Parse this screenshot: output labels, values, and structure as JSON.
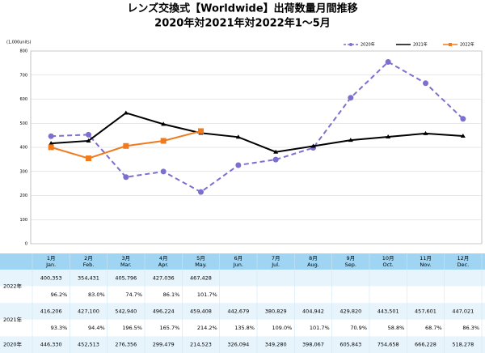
{
  "chart_data": {
    "type": "line",
    "title": "レンズ交換式【Worldwide】出荷数量月間推移",
    "subtitle": "2020年対2021年対2022年1～5月",
    "y_label": "(1,000units)",
    "categories": [
      "1月",
      "2月",
      "3月",
      "4月",
      "5月",
      "6月",
      "7月",
      "8月",
      "9月",
      "10月",
      "11月",
      "12月"
    ],
    "categories_en": [
      "Jan.",
      "Feb.",
      "Mar.",
      "Apr.",
      "May.",
      "Jun.",
      "Jul.",
      "Aug.",
      "Sep.",
      "Oct.",
      "Nov.",
      "Dec."
    ],
    "ylim": [
      0,
      800
    ],
    "yticks": [
      0,
      100,
      200,
      300,
      400,
      500,
      600,
      700,
      800
    ],
    "grid": true,
    "legend": "top-right",
    "series": [
      {
        "name": "2020年",
        "color": "#7b6fd0",
        "dashed": true,
        "marker": "circle",
        "values": [
          446.33,
          452.513,
          276.356,
          299.479,
          214.523,
          326.094,
          349.28,
          398.067,
          605.843,
          754.658,
          666.228,
          518.278
        ],
        "value_labels": [
          "446,330",
          "452,513",
          "276,356",
          "299,479",
          "214,523",
          "326,094",
          "349,280",
          "398,067",
          "605,843",
          "754,658",
          "666,228",
          "518,278"
        ]
      },
      {
        "name": "2021年",
        "color": "#000000",
        "dashed": false,
        "marker": "none",
        "values": [
          416.206,
          427.1,
          542.94,
          496.224,
          459.408,
          442.679,
          380.829,
          404.942,
          429.82,
          443.501,
          457.601,
          447.021
        ],
        "value_labels": [
          "416,206",
          "427,100",
          "542,940",
          "496,224",
          "459,408",
          "442,679",
          "380,829",
          "404,942",
          "429,820",
          "443,501",
          "457,601",
          "447,021"
        ],
        "yoy": [
          "93.3%",
          "94.4%",
          "196.5%",
          "165.7%",
          "214.2%",
          "135.8%",
          "109.0%",
          "101.7%",
          "70.9%",
          "58.8%",
          "68.7%",
          "86.3%"
        ]
      },
      {
        "name": "2022年",
        "color": "#f07b1e",
        "dashed": false,
        "marker": "square",
        "values": [
          400.353,
          354.431,
          405.796,
          427.036,
          467.428,
          null,
          null,
          null,
          null,
          null,
          null,
          null
        ],
        "value_labels": [
          "400,353",
          "354,431",
          "405,796",
          "427,036",
          "467,428",
          null,
          null,
          null,
          null,
          null,
          null,
          null
        ],
        "yoy": [
          "96.2%",
          "83.0%",
          "74.7%",
          "86.1%",
          "101.7%",
          null,
          null,
          null,
          null,
          null,
          null,
          null
        ]
      }
    ]
  }
}
